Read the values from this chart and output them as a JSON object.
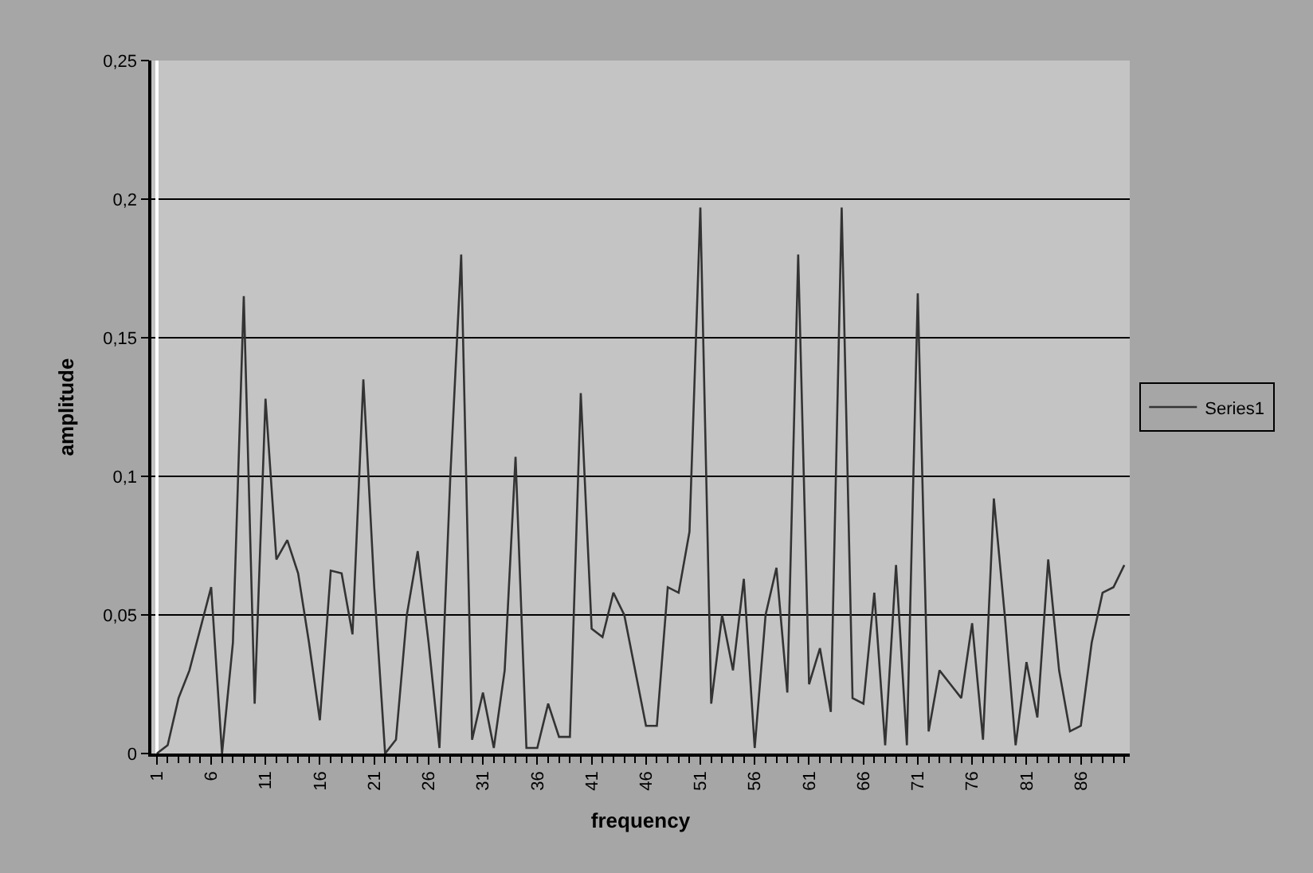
{
  "chart_data": {
    "type": "line",
    "xlabel": "frequency",
    "ylabel": "amplitude",
    "categories": [
      "1",
      null,
      null,
      null,
      null,
      "6",
      null,
      null,
      null,
      null,
      "11",
      null,
      null,
      null,
      null,
      "16",
      null,
      null,
      null,
      null,
      "21",
      null,
      null,
      null,
      null,
      "26",
      null,
      null,
      null,
      null,
      "31",
      null,
      null,
      null,
      null,
      "36",
      null,
      null,
      null,
      null,
      "41",
      null,
      null,
      null,
      null,
      "46",
      null,
      null,
      null,
      null,
      "51",
      null,
      null,
      null,
      null,
      "56",
      null,
      null,
      null,
      null,
      "61",
      null,
      null,
      null,
      null,
      "66",
      null,
      null,
      null,
      null,
      "71",
      null,
      null,
      null,
      null,
      "76",
      null,
      null,
      null,
      null,
      "81",
      null,
      null,
      null,
      null,
      "86",
      null,
      null,
      null,
      null
    ],
    "series": [
      {
        "name": "Series1",
        "color": "#333333",
        "values": [
          0,
          0.003,
          0.02,
          0.03,
          0.045,
          0.06,
          0,
          0.04,
          0.165,
          0.018,
          0.128,
          0.07,
          0.077,
          0.065,
          0.04,
          0.012,
          0.066,
          0.065,
          0.043,
          0.135,
          0.06,
          0,
          0.005,
          0.05,
          0.073,
          0.04,
          0.002,
          0.1,
          0.18,
          0.005,
          0.022,
          0.002,
          0.03,
          0.107,
          0.002,
          0.002,
          0.018,
          0.006,
          0.006,
          0.13,
          0.045,
          0.042,
          0.058,
          0.05,
          0.03,
          0.01,
          0.01,
          0.06,
          0.058,
          0.08,
          0.197,
          0.018,
          0.05,
          0.03,
          0.063,
          0.002,
          0.05,
          0.067,
          0.022,
          0.18,
          0.025,
          0.038,
          0.015,
          0.197,
          0.02,
          0.018,
          0.058,
          0.003,
          0.068,
          0.003,
          0.166,
          0.008,
          0.03,
          0.025,
          0.02,
          0.047,
          0.005,
          0.092,
          0.05,
          0.003,
          0.033,
          0.013,
          0.07,
          0.03,
          0.008,
          0.01,
          0.04,
          0.058,
          0.06,
          0.068
        ]
      }
    ],
    "ylim": [
      0,
      0.25
    ],
    "yticks": [
      0,
      {
        "value": 0.05,
        "label": "0,05"
      },
      {
        "value": 0.1,
        "label": "0,1"
      },
      {
        "value": 0.15,
        "label": "0,15"
      },
      {
        "value": 0.2,
        "label": "0,2"
      },
      {
        "value": 0.25,
        "label": "0,25"
      }
    ],
    "grid": "y",
    "legend": "right",
    "marker": "none",
    "line_style": "solid"
  }
}
